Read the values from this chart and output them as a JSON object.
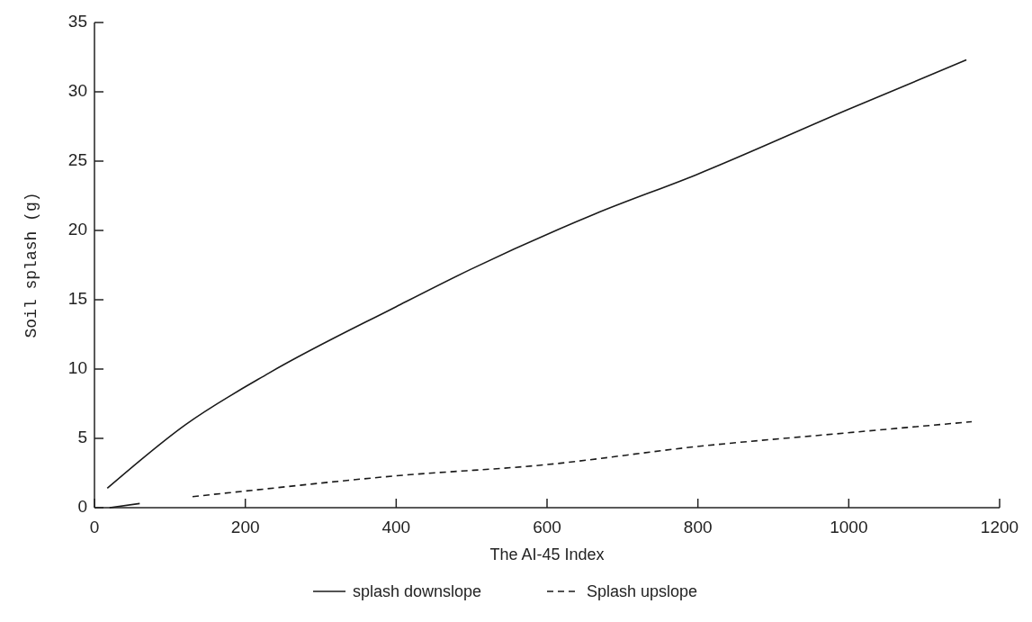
{
  "chart_data": {
    "type": "line",
    "xlabel": "The AI-45 Index",
    "ylabel": "Soil splash (g)",
    "xlim": [
      0,
      1200
    ],
    "xticks": [
      0,
      200,
      400,
      600,
      800,
      1000,
      1200
    ],
    "ylim": [
      0,
      35
    ],
    "yticks": [
      0,
      5,
      10,
      15,
      20,
      25,
      30,
      35
    ],
    "grid": false,
    "legend": "bottom",
    "series": [
      {
        "name": "splash downslope",
        "color": "#1a1a1a",
        "line_style": "solid",
        "x": [
          17,
          121,
          231,
          400,
          499,
          664,
          797,
          998,
          1156
        ],
        "values": [
          1.4,
          6.0,
          9.7,
          14.5,
          17.2,
          21.2,
          24.0,
          28.7,
          32.3
        ]
      },
      {
        "name": "Splash upslope",
        "color": "#1a1a1a",
        "line_style": "dashed",
        "x": [
          130,
          200,
          400,
          598,
          797,
          998,
          1163
        ],
        "values": [
          0.8,
          1.2,
          2.3,
          3.1,
          4.4,
          5.4,
          6.2
        ]
      },
      {
        "color": "#1a1a1a",
        "line_style": "solid",
        "x": [
          20,
          60
        ],
        "values": [
          0,
          0.3
        ]
      }
    ]
  }
}
